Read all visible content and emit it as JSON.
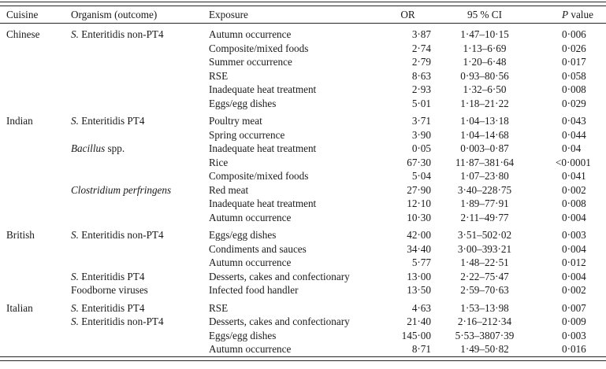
{
  "table": {
    "header": {
      "cuisine": "Cuisine",
      "organism": "Organism (outcome)",
      "exposure": "Exposure",
      "or": "OR",
      "ci": "95 % CI",
      "p_italic": "P",
      "p_rest": " value"
    },
    "sections": [
      {
        "cuisine": "Chinese",
        "rows": [
          {
            "organism_italic": "S.",
            "organism_roman": "Enteritidis non-PT4",
            "exposure": "Autumn occurrence",
            "or": "3·87",
            "ci": "1·47–10·15",
            "p": "0·006"
          },
          {
            "organism_italic": "",
            "organism_roman": "",
            "exposure": "Composite/mixed foods",
            "or": "2·74",
            "ci": "1·13–6·69",
            "p": "0·026"
          },
          {
            "organism_italic": "",
            "organism_roman": "",
            "exposure": "Summer occurrence",
            "or": "2·79",
            "ci": "1·20–6·48",
            "p": "0·017"
          },
          {
            "organism_italic": "",
            "organism_roman": "",
            "exposure": "RSE",
            "or": "8·63",
            "ci": "0·93–80·56",
            "p": "0·058"
          },
          {
            "organism_italic": "",
            "organism_roman": "",
            "exposure": "Inadequate heat treatment",
            "or": "2·93",
            "ci": "1·32–6·50",
            "p": "0·008"
          },
          {
            "organism_italic": "",
            "organism_roman": "",
            "exposure": "Eggs/egg dishes",
            "or": "5·01",
            "ci": "1·18–21·22",
            "p": "0·029"
          }
        ]
      },
      {
        "cuisine": "Indian",
        "rows": [
          {
            "organism_italic": "S.",
            "organism_roman": "Enteritidis PT4",
            "exposure": "Poultry meat",
            "or": "3·71",
            "ci": "1·04–13·18",
            "p": "0·043"
          },
          {
            "organism_italic": "",
            "organism_roman": "",
            "exposure": "Spring occurrence",
            "or": "3·90",
            "ci": "1·04–14·68",
            "p": "0·044"
          },
          {
            "organism_italic": "Bacillus",
            "organism_roman": "spp.",
            "exposure": "Inadequate heat treatment",
            "or": "0·05",
            "ci": "0·003–0·87",
            "p": "0·04"
          },
          {
            "organism_italic": "",
            "organism_roman": "",
            "exposure": "Rice",
            "or": "67·30",
            "ci": "11·87–381·64",
            "p": "<0·0001"
          },
          {
            "organism_italic": "",
            "organism_roman": "",
            "exposure": "Composite/mixed foods",
            "or": "5·04",
            "ci": "1·07–23·80",
            "p": "0·041"
          },
          {
            "organism_italic": "Clostridium perfringens",
            "organism_roman": "",
            "exposure": "Red meat",
            "or": "27·90",
            "ci": "3·40–228·75",
            "p": "0·002"
          },
          {
            "organism_italic": "",
            "organism_roman": "",
            "exposure": "Inadequate heat treatment",
            "or": "12·10",
            "ci": "1·89–77·91",
            "p": "0·008"
          },
          {
            "organism_italic": "",
            "organism_roman": "",
            "exposure": "Autumn occurrence",
            "or": "10·30",
            "ci": "2·11–49·77",
            "p": "0·004"
          }
        ]
      },
      {
        "cuisine": "British",
        "rows": [
          {
            "organism_italic": "S.",
            "organism_roman": "Enteritidis non-PT4",
            "exposure": "Eggs/egg dishes",
            "or": "42·00",
            "ci": "3·51–502·02",
            "p": "0·003"
          },
          {
            "organism_italic": "",
            "organism_roman": "",
            "exposure": "Condiments and sauces",
            "or": "34·40",
            "ci": "3·00–393·21",
            "p": "0·004"
          },
          {
            "organism_italic": "",
            "organism_roman": "",
            "exposure": "Autumn occurrence",
            "or": "5·77",
            "ci": "1·48–22·51",
            "p": "0·012"
          },
          {
            "organism_italic": "S.",
            "organism_roman": "Enteritidis PT4",
            "exposure": "Desserts, cakes and confectionary",
            "or": "13·00",
            "ci": "2·22–75·47",
            "p": "0·004"
          },
          {
            "organism_italic": "",
            "organism_roman": "Foodborne viruses",
            "exposure": "Infected food handler",
            "or": "13·50",
            "ci": "2·59–70·63",
            "p": "0·002"
          }
        ]
      },
      {
        "cuisine": "Italian",
        "rows": [
          {
            "organism_italic": "S.",
            "organism_roman": "Enteritidis PT4",
            "exposure": "RSE",
            "or": "4·63",
            "ci": "1·53–13·98",
            "p": "0·007"
          },
          {
            "organism_italic": "S.",
            "organism_roman": "Enteritidis non-PT4",
            "exposure": "Desserts, cakes and confectionary",
            "or": "21·40",
            "ci": "2·16–212·34",
            "p": "0·009"
          },
          {
            "organism_italic": "",
            "organism_roman": "",
            "exposure": "Eggs/egg dishes",
            "or": "145·00",
            "ci": "5·53–3807·39",
            "p": "0·003"
          },
          {
            "organism_italic": "",
            "organism_roman": "",
            "exposure": "Autumn occurrence",
            "or": "8·71",
            "ci": "1·49–50·82",
            "p": "0·016"
          }
        ]
      }
    ]
  }
}
